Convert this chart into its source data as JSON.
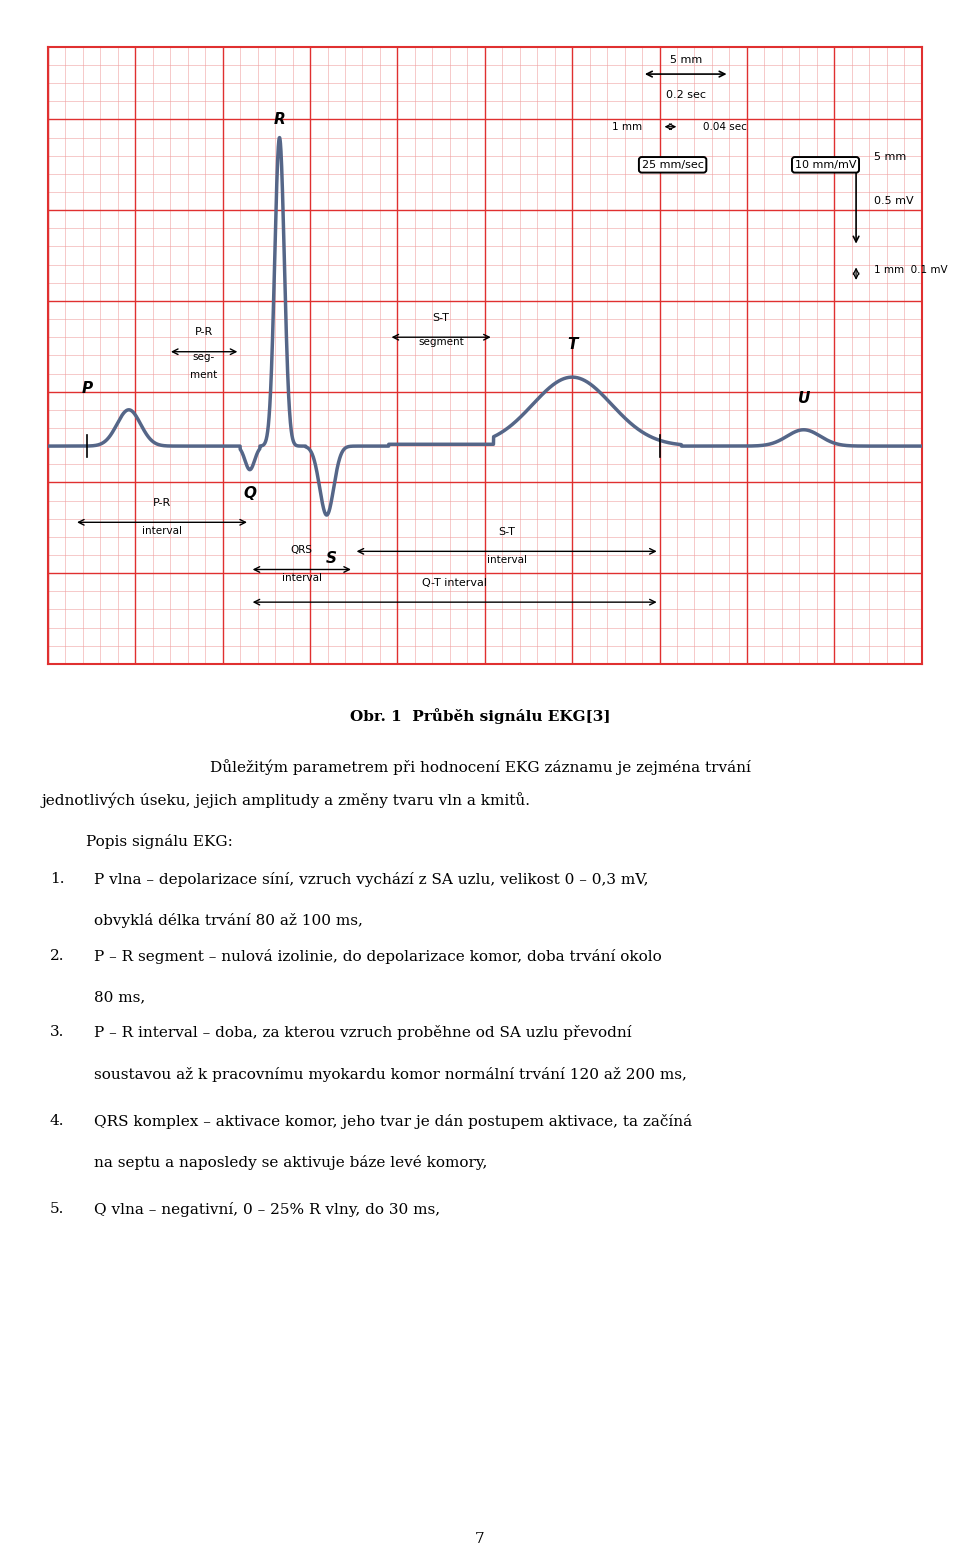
{
  "bg_color": "#ffffff",
  "minor_grid_color": "#f0a0a0",
  "major_grid_color": "#e03030",
  "ecg_color": "#556688",
  "ecg_linewidth": 2.5,
  "fig_width": 9.6,
  "fig_height": 15.62,
  "caption": "Obr. 1  Průběh signálu EKG[3]",
  "para1_line1": "Důležitým parametrem při hodnocení EKG záznamu je zejména trvání",
  "para1_line2": "jednotlivých úseku, jejich amplitudy a změny tvaru vln a kmitů.",
  "para2": "Popis signálu EKG:",
  "item1_l1": "P vlna – depolarizace síní, vzruch vychází z SA uzlu, velikost 0 – 0,3 mV,",
  "item1_l2": "obvyklá délka trvání 80 až 100 ms,",
  "item2_l1": "P – R segment – nulová izolinie, do depolarizace komor, doba trvání okolo",
  "item2_l2": "80 ms,",
  "item3_l1": "P – R interval – doba, za kterou vzruch proběhne od SA uzlu převodní",
  "item3_l2": "soustavou až k pracovnímu myokardu komor normální trvání 120 až 200 ms,",
  "item4_l1": "QRS komplex – aktivace komor, jeho tvar je dán postupem aktivace, ta začíná",
  "item4_l2": "na septu a naposledy se aktivuje báze levé komory,",
  "item5_l1": "Q vlna – negativní, 0 – 25% R vlny, do 30 ms,",
  "page_number": "7"
}
